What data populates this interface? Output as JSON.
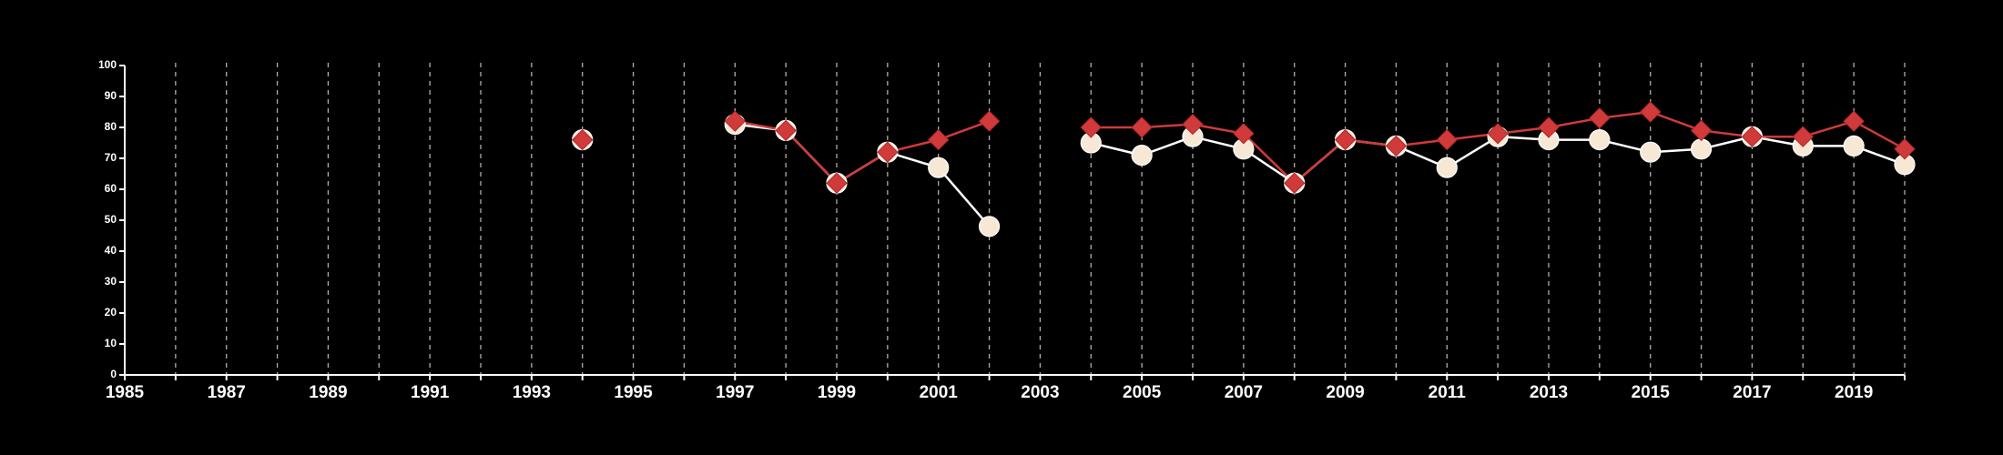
{
  "chart_data": {
    "type": "line",
    "title": "",
    "xlabel": "",
    "ylabel": "",
    "xlim": [
      1985,
      2020
    ],
    "ylim": [
      0,
      100
    ],
    "x_ticks": [
      1985,
      1987,
      1989,
      1991,
      1993,
      1995,
      1997,
      1999,
      2001,
      2003,
      2005,
      2007,
      2009,
      2011,
      2013,
      2015,
      2017,
      2019
    ],
    "y_ticks": [
      0,
      10,
      20,
      30,
      40,
      50,
      60,
      70,
      80,
      90,
      100
    ],
    "vertical_grid": "dashed, every year",
    "legend": "none",
    "background": "#000000",
    "series": [
      {
        "marker": "circle",
        "color": "#f7e8d6",
        "line_color": "#ffffff",
        "points": [
          {
            "x": 1994,
            "y": 76
          },
          {
            "x": 1997,
            "y": 81
          },
          {
            "x": 1998,
            "y": 79
          },
          {
            "x": 1999,
            "y": 62
          },
          {
            "x": 2000,
            "y": 72
          },
          {
            "x": 2001,
            "y": 67
          },
          {
            "x": 2002,
            "y": 48
          },
          {
            "x": 2004,
            "y": 75
          },
          {
            "x": 2005,
            "y": 71
          },
          {
            "x": 2006,
            "y": 77
          },
          {
            "x": 2007,
            "y": 73
          },
          {
            "x": 2008,
            "y": 62
          },
          {
            "x": 2009,
            "y": 76
          },
          {
            "x": 2010,
            "y": 74
          },
          {
            "x": 2011,
            "y": 67
          },
          {
            "x": 2012,
            "y": 77
          },
          {
            "x": 2013,
            "y": 76
          },
          {
            "x": 2014,
            "y": 76
          },
          {
            "x": 2015,
            "y": 72
          },
          {
            "x": 2016,
            "y": 73
          },
          {
            "x": 2017,
            "y": 77
          },
          {
            "x": 2018,
            "y": 74
          },
          {
            "x": 2019,
            "y": 74
          },
          {
            "x": 2020,
            "y": 68
          }
        ]
      },
      {
        "marker": "diamond",
        "color": "#d03a3a",
        "line_color": "#d03a3a",
        "points": [
          {
            "x": 1994,
            "y": 76
          },
          {
            "x": 1997,
            "y": 82
          },
          {
            "x": 1998,
            "y": 79
          },
          {
            "x": 1999,
            "y": 62
          },
          {
            "x": 2000,
            "y": 72
          },
          {
            "x": 2001,
            "y": 76
          },
          {
            "x": 2002,
            "y": 82
          },
          {
            "x": 2004,
            "y": 80
          },
          {
            "x": 2005,
            "y": 80
          },
          {
            "x": 2006,
            "y": 81
          },
          {
            "x": 2007,
            "y": 78
          },
          {
            "x": 2008,
            "y": 62
          },
          {
            "x": 2009,
            "y": 76
          },
          {
            "x": 2010,
            "y": 74
          },
          {
            "x": 2011,
            "y": 76
          },
          {
            "x": 2012,
            "y": 78
          },
          {
            "x": 2013,
            "y": 80
          },
          {
            "x": 2014,
            "y": 83
          },
          {
            "x": 2015,
            "y": 85
          },
          {
            "x": 2016,
            "y": 79
          },
          {
            "x": 2017,
            "y": 77
          },
          {
            "x": 2018,
            "y": 77
          },
          {
            "x": 2019,
            "y": 82
          },
          {
            "x": 2020,
            "y": 73
          }
        ]
      }
    ]
  }
}
